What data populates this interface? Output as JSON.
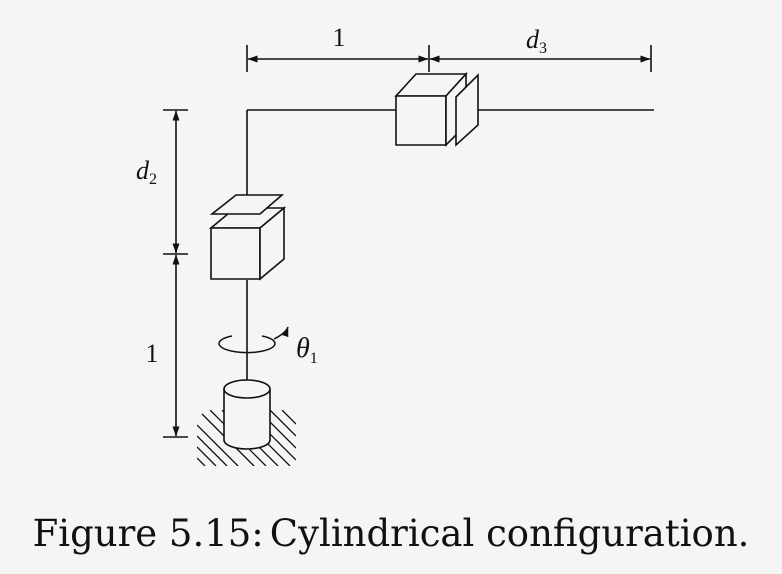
{
  "diagram": {
    "labels": {
      "top_unit": "1",
      "d3_base": "d",
      "d3_sub": "3",
      "d2_base": "d",
      "d2_sub": "2",
      "bottom_unit": "1",
      "theta_base": "θ",
      "theta_sub": "1"
    },
    "colors": {
      "ink": "#111111",
      "background": "#f5f5f5"
    }
  },
  "caption": {
    "prefix": "Figure 5.15:",
    "text": "Cylindrical configuration."
  }
}
